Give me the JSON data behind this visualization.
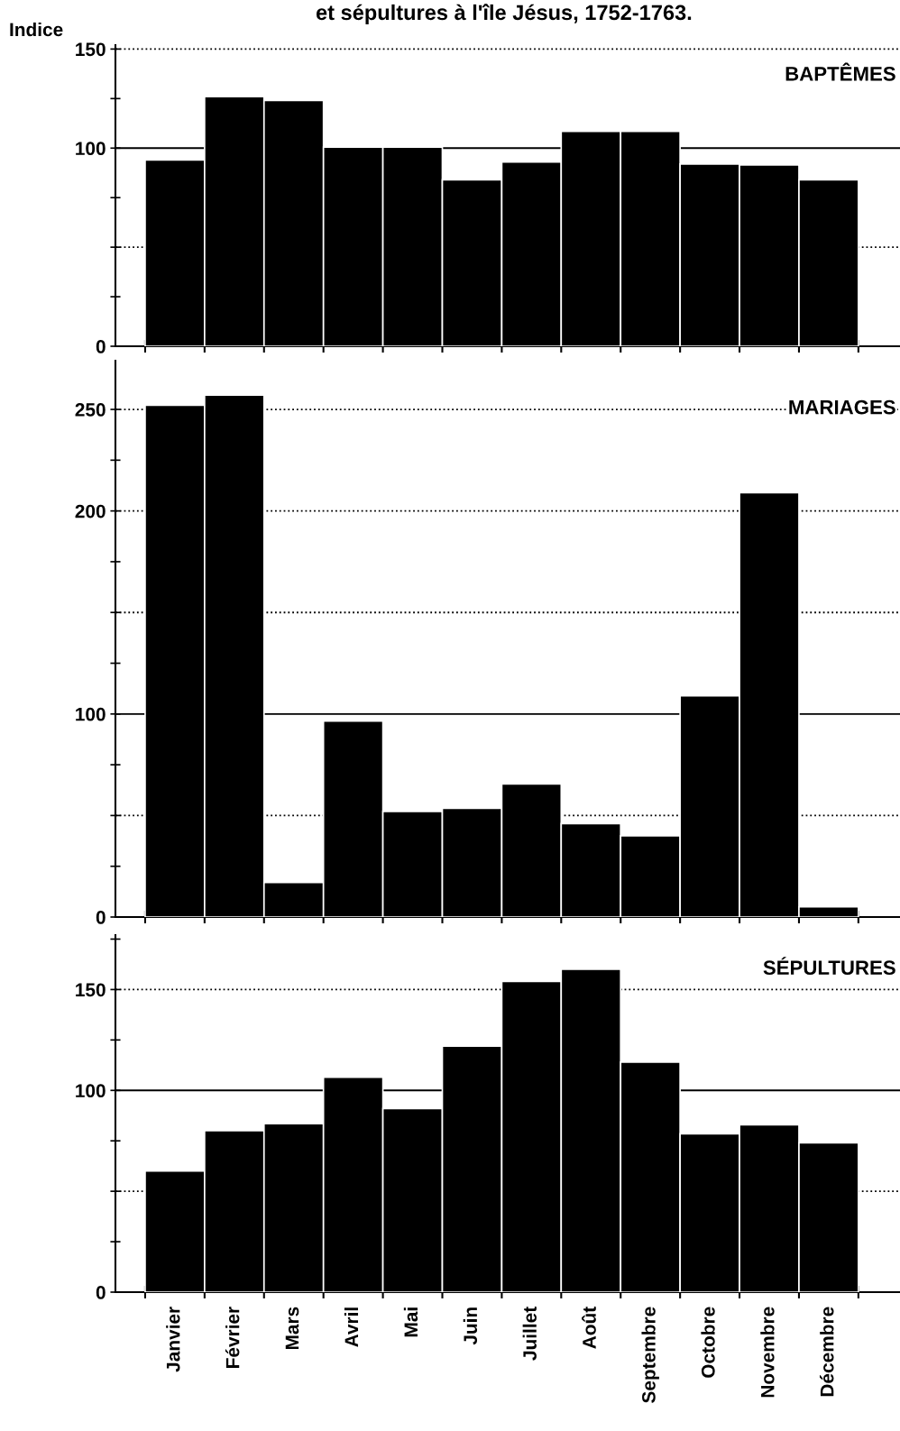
{
  "chart_data": [
    {
      "type": "bar",
      "title": "et sépultures à l'île Jésus, 1752-1763.",
      "ylabel": "Indice",
      "annotations": [
        "BAPTÊMES"
      ],
      "categories": [
        null,
        null,
        null,
        null,
        null,
        null,
        null,
        null,
        null,
        null,
        null,
        null
      ],
      "values": [
        94,
        126,
        124,
        100.5,
        100.5,
        84,
        93,
        108.5,
        108.5,
        92,
        91.5,
        84
      ],
      "color": "#000000",
      "ylim": [
        0,
        152
      ],
      "yticks": [
        0,
        {
          "value": 25,
          "label": null
        },
        {
          "value": 50,
          "label": null
        },
        {
          "value": 75,
          "label": null
        },
        100,
        {
          "value": 125,
          "label": null
        },
        150
      ],
      "ref_lines": [
        {
          "axis": "y",
          "value": 50,
          "line_style": "dotted"
        },
        {
          "axis": "y",
          "value": 100,
          "line_style": "solid"
        },
        {
          "axis": "y",
          "value": 150,
          "line_style": "dotted"
        }
      ],
      "tick_labels": "y"
    },
    {
      "type": "bar",
      "annotations": [
        "MARIAGES"
      ],
      "categories": [
        null,
        null,
        null,
        null,
        null,
        null,
        null,
        null,
        null,
        null,
        null,
        null
      ],
      "values": [
        252,
        257,
        17,
        96.5,
        52,
        53.5,
        65.5,
        46,
        40,
        109,
        209,
        5
      ],
      "color": "#000000",
      "ylim": [
        0,
        274
      ],
      "yticks": [
        0,
        {
          "value": 25,
          "label": null
        },
        {
          "value": 50,
          "label": null
        },
        {
          "value": 75,
          "label": null
        },
        100,
        {
          "value": 125,
          "label": null
        },
        {
          "value": 150,
          "label": null
        },
        {
          "value": 175,
          "label": null
        },
        200,
        {
          "value": 225,
          "label": null
        },
        250
      ],
      "ref_lines": [
        {
          "axis": "y",
          "value": 50,
          "line_style": "dotted"
        },
        {
          "axis": "y",
          "value": 100,
          "line_style": "solid"
        },
        {
          "axis": "y",
          "value": 150,
          "line_style": "dotted"
        },
        {
          "axis": "y",
          "value": 200,
          "line_style": "dotted"
        },
        {
          "axis": "y",
          "value": 250,
          "line_style": "dotted"
        }
      ],
      "tick_labels": "y"
    },
    {
      "type": "bar",
      "annotations": [
        "SÉPULTURES"
      ],
      "categories": [
        "Janvier",
        "Février",
        "Mars",
        "Avril",
        "Mai",
        "Juin",
        "Juillet",
        "Août",
        "Septembre",
        "Octobre",
        "Novembre",
        "Décembre"
      ],
      "values": [
        60,
        80,
        83.5,
        106.5,
        91,
        122,
        154,
        160,
        114,
        78.5,
        83,
        74
      ],
      "color": "#000000",
      "ylim": [
        0,
        177
      ],
      "yticks": [
        0,
        {
          "value": 25,
          "label": null
        },
        {
          "value": 50,
          "label": null
        },
        {
          "value": 75,
          "label": null
        },
        100,
        {
          "value": 125,
          "label": null
        },
        150,
        {
          "value": 175,
          "label": null
        }
      ],
      "ref_lines": [
        {
          "axis": "y",
          "value": 50,
          "line_style": "dotted"
        },
        {
          "axis": "y",
          "value": 100,
          "line_style": "solid"
        },
        {
          "axis": "y",
          "value": 150,
          "line_style": "dotted"
        }
      ]
    }
  ]
}
